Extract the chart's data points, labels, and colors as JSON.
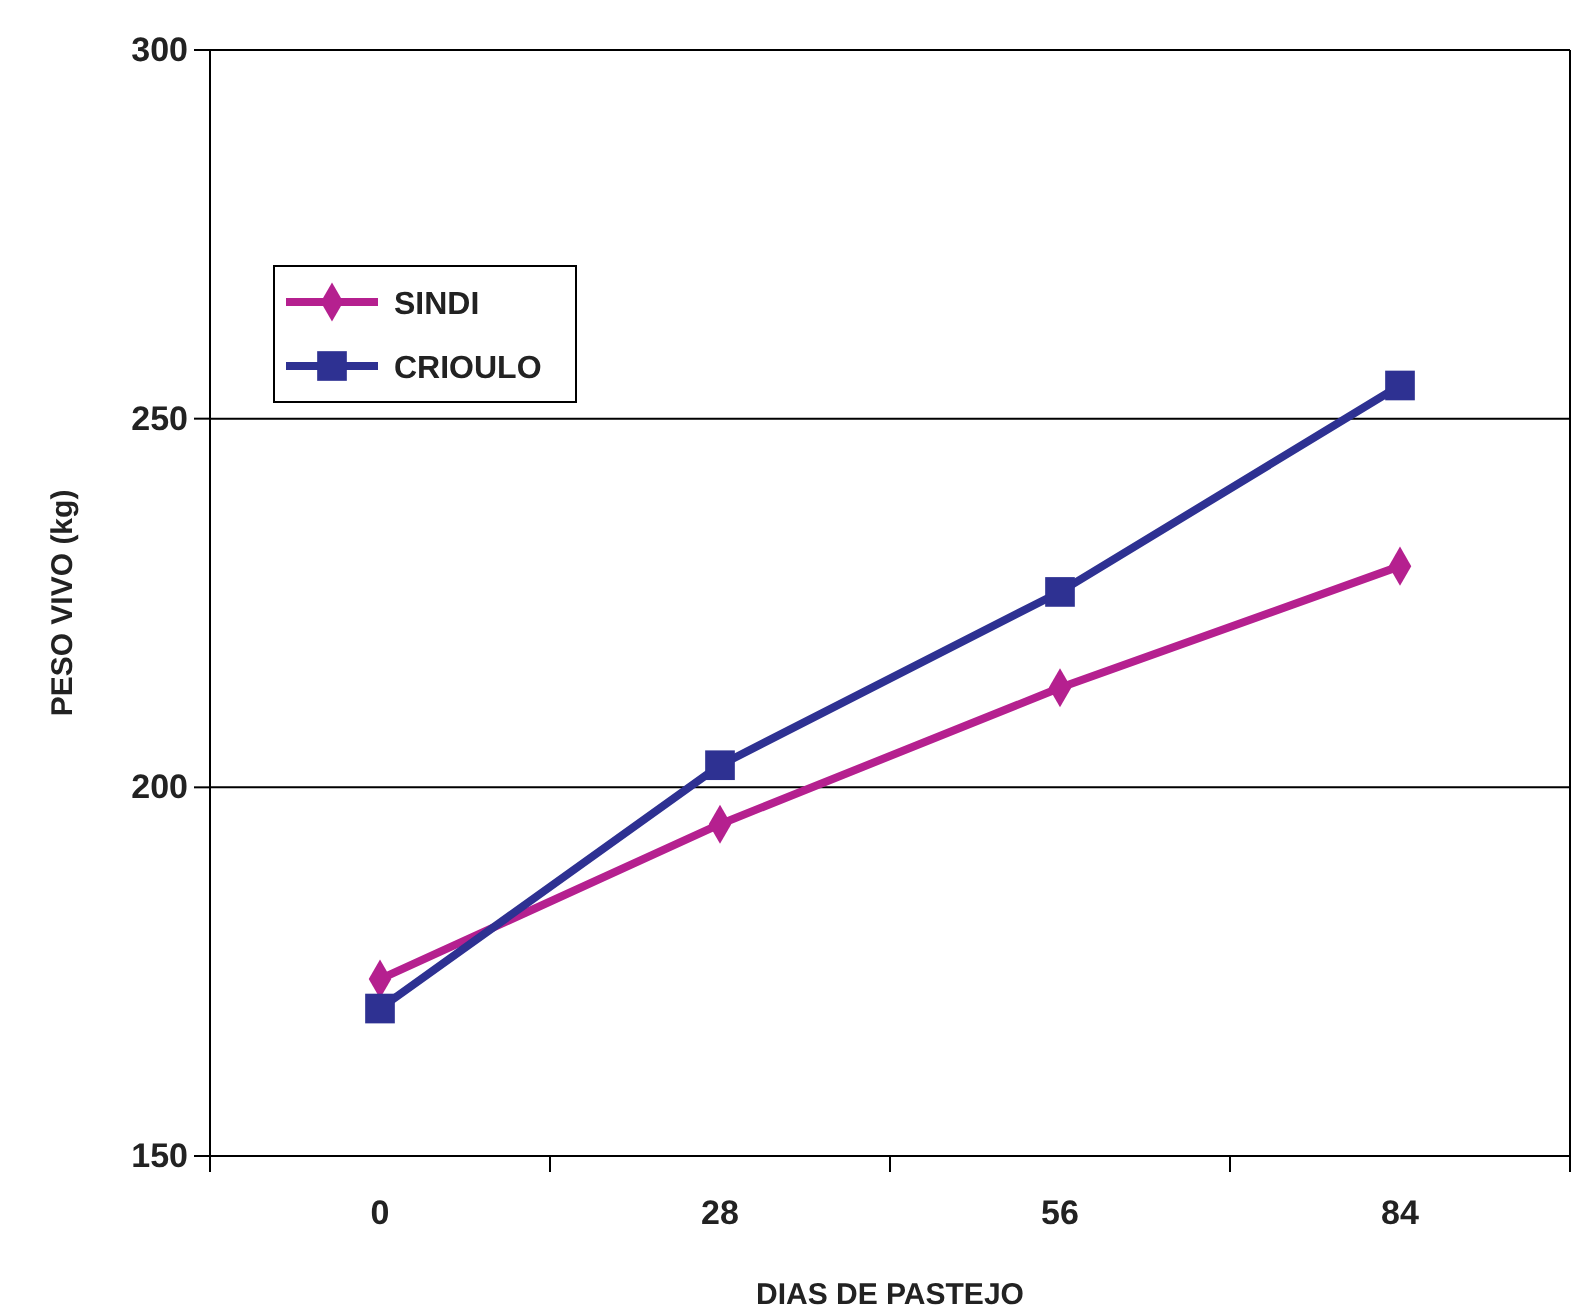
{
  "chart_data": {
    "type": "line",
    "xlabel": "DIAS DE PASTEJO",
    "ylabel": "PESO VIVO (kg)",
    "categories": [
      "0",
      "28",
      "56",
      "84"
    ],
    "series": [
      {
        "name": "SINDI",
        "color": "#b5208f",
        "values": [
          174,
          195,
          213.5,
          230
        ],
        "marker": "diamond"
      },
      {
        "name": "CRIOULO",
        "color": "#2e3192",
        "values": [
          170,
          203,
          226.5,
          254.5
        ],
        "marker": "square"
      }
    ],
    "ylim": [
      150,
      300
    ],
    "yticks": [
      150,
      200,
      250,
      300
    ],
    "grid": "y",
    "legend": "top left",
    "line_style": "solid"
  }
}
